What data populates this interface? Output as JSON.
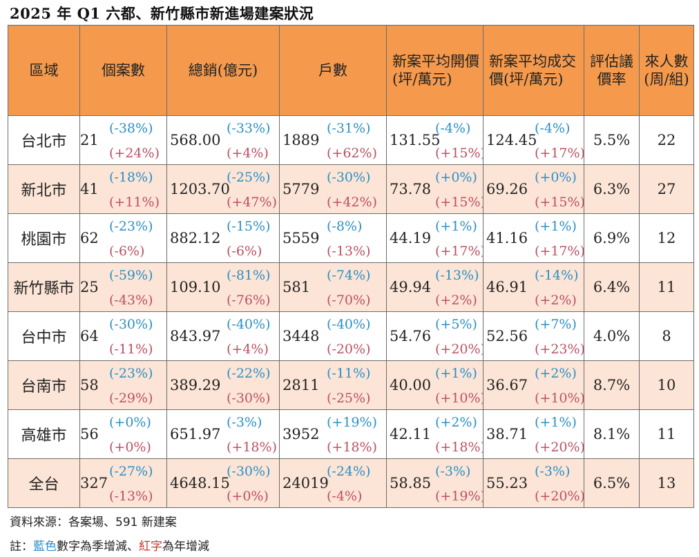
{
  "title": "2025 年 Q1 六都、新竹縣市新進場建案狀況",
  "colors": {
    "header_bg": "#f59a4d",
    "row_alt_bg": "#fce5d6",
    "qoq": "#2a8fc7",
    "yoy": "#bb5063"
  },
  "columns": [
    "區域",
    "個案數",
    "總銷(億元)",
    "戶數",
    "新案平均開價(坪/萬元)",
    "新案平均成交價(坪/萬元)",
    "評估議價率",
    "來人數(周/組)"
  ],
  "rows": [
    {
      "region": "台北市",
      "cases": [
        "21",
        "(-38%)",
        "(+24%)"
      ],
      "total": [
        "568.00",
        "(-33%)",
        "(+4%)"
      ],
      "units": [
        "1889",
        "(-31%)",
        "(+62%)"
      ],
      "ask": [
        "131.55",
        "(-4%)",
        "(+15%)"
      ],
      "deal": [
        "124.45",
        "(-4%)",
        "(+17%)"
      ],
      "rate": "5.5%",
      "visitors": "22"
    },
    {
      "region": "新北市",
      "cases": [
        "41",
        "(-18%)",
        "(+11%)"
      ],
      "total": [
        "1203.70",
        "(-25%)",
        "(+47%)"
      ],
      "units": [
        "5779",
        "(-30%)",
        "(+42%)"
      ],
      "ask": [
        "73.78",
        "(+0%)",
        "(+15%)"
      ],
      "deal": [
        "69.26",
        "(+0%)",
        "(+15%)"
      ],
      "rate": "6.3%",
      "visitors": "27"
    },
    {
      "region": "桃園市",
      "cases": [
        "62",
        "(-23%)",
        "(-6%)"
      ],
      "total": [
        "882.12",
        "(-15%)",
        "(-6%)"
      ],
      "units": [
        "5559",
        "(-8%)",
        "(-13%)"
      ],
      "ask": [
        "44.19",
        "(+1%)",
        "(+17%)"
      ],
      "deal": [
        "41.16",
        "(+1%)",
        "(+17%)"
      ],
      "rate": "6.9%",
      "visitors": "12"
    },
    {
      "region": "新竹縣市",
      "cases": [
        "25",
        "(-59%)",
        "(-43%)"
      ],
      "total": [
        "109.10",
        "(-81%)",
        "(-76%)"
      ],
      "units": [
        "581",
        "(-74%)",
        "(-70%)"
      ],
      "ask": [
        "49.94",
        "(-13%)",
        "(+2%)"
      ],
      "deal": [
        "46.91",
        "(-14%)",
        "(+2%)"
      ],
      "rate": "6.4%",
      "visitors": "11"
    },
    {
      "region": "台中市",
      "cases": [
        "64",
        "(-30%)",
        "(-11%)"
      ],
      "total": [
        "843.97",
        "(-40%)",
        "(+4%)"
      ],
      "units": [
        "3448",
        "(-40%)",
        "(-20%)"
      ],
      "ask": [
        "54.76",
        "(+5%)",
        "(+20%)"
      ],
      "deal": [
        "52.56",
        "(+7%)",
        "(+23%)"
      ],
      "rate": "4.0%",
      "visitors": "8"
    },
    {
      "region": "台南市",
      "cases": [
        "58",
        "(-23%)",
        "(-29%)"
      ],
      "total": [
        "389.29",
        "(-22%)",
        "(-30%)"
      ],
      "units": [
        "2811",
        "(-11%)",
        "(-25%)"
      ],
      "ask": [
        "40.00",
        "(+1%)",
        "(+10%)"
      ],
      "deal": [
        "36.67",
        "(+2%)",
        "(+10%)"
      ],
      "rate": "8.7%",
      "visitors": "10"
    },
    {
      "region": "高雄市",
      "cases": [
        "56",
        "(+0%)",
        "(+0%)"
      ],
      "total": [
        "651.97",
        "(-3%)",
        "(+18%)"
      ],
      "units": [
        "3952",
        "(+19%)",
        "(+18%)"
      ],
      "ask": [
        "42.11",
        "(+2%)",
        "(+18%)"
      ],
      "deal": [
        "38.71",
        "(+1%)",
        "(+20%)"
      ],
      "rate": "8.1%",
      "visitors": "11"
    },
    {
      "region": "全台",
      "cases": [
        "327",
        "(-27%)",
        "(-13%)"
      ],
      "total": [
        "4648.15",
        "(-30%)",
        "(+0%)"
      ],
      "units": [
        "24019",
        "(-24%)",
        "(-4%)"
      ],
      "ask": [
        "58.85",
        "(-3%)",
        "(+19%)"
      ],
      "deal": [
        "55.23",
        "(-3%)",
        "(+20%)"
      ],
      "rate": "6.5%",
      "visitors": "13"
    }
  ],
  "source": "資料來源：各案場、591 新建案",
  "note": {
    "prefix": "註：",
    "blue_word": "藍色",
    "middle": "數字為季增減、",
    "red_word": "紅字",
    "suffix": "為年增減"
  }
}
